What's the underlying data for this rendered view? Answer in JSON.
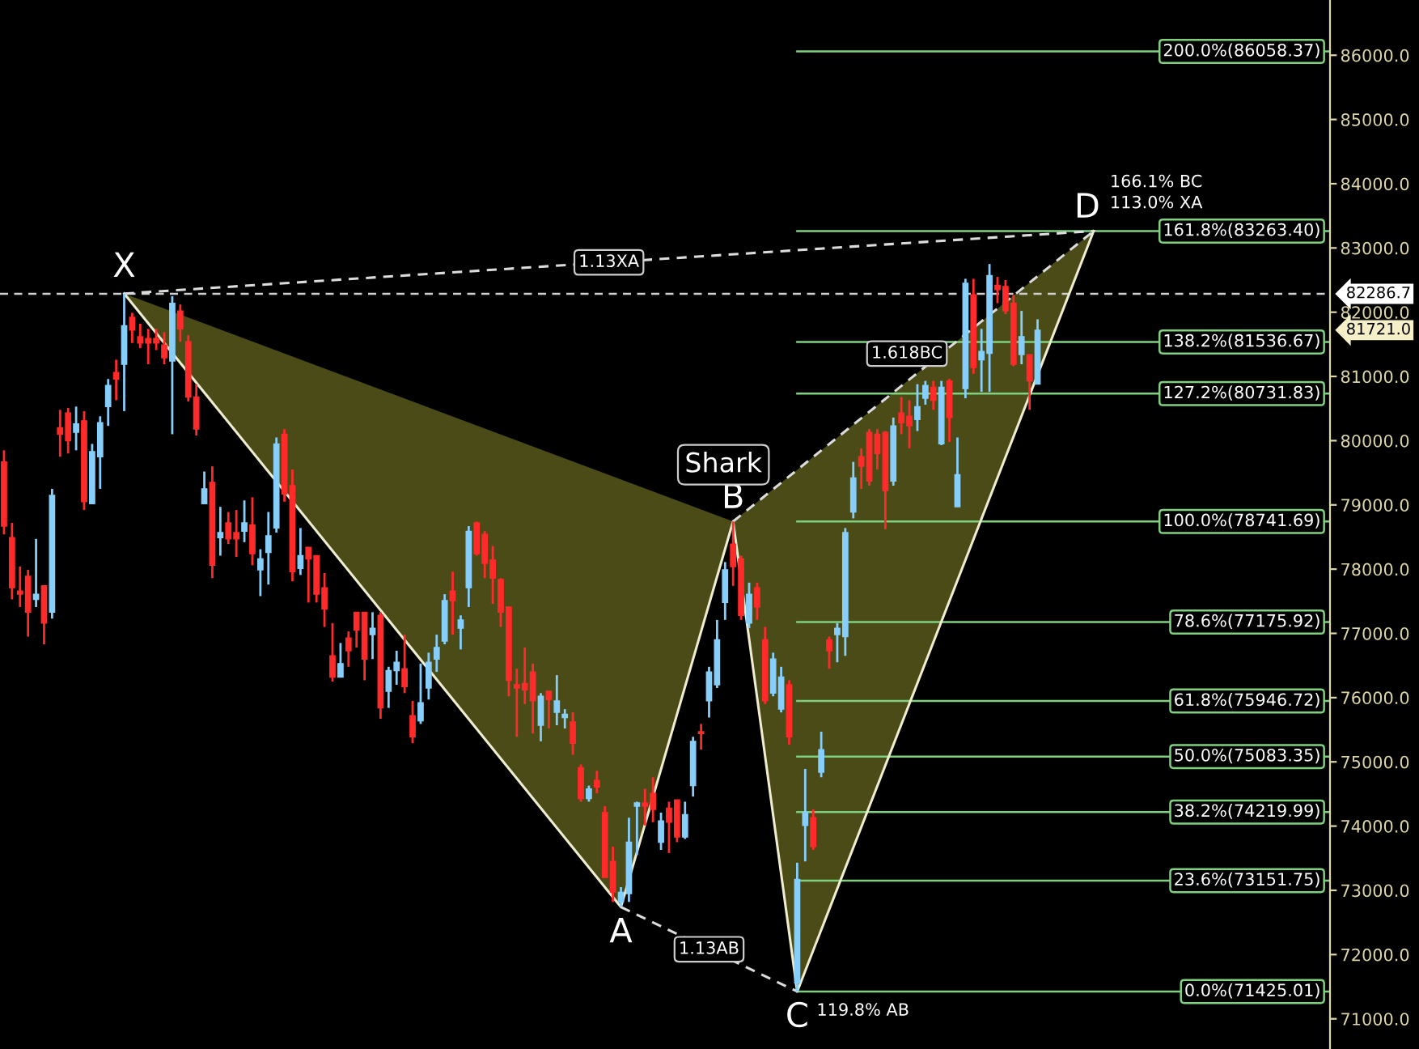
{
  "chart_data": {
    "type": "candlestick",
    "categories": [
      null,
      null,
      null,
      null,
      null,
      null,
      null,
      null,
      null,
      null,
      null,
      null,
      null,
      null,
      null,
      null,
      null,
      null,
      null,
      null,
      null,
      null,
      null,
      null,
      null,
      null,
      null,
      null,
      null,
      null,
      null,
      null,
      null,
      null,
      null,
      null,
      null,
      null,
      null,
      null,
      null,
      null,
      null,
      null,
      null,
      null,
      null,
      null,
      null,
      null,
      null,
      null,
      null,
      null,
      null,
      null,
      null,
      null,
      null,
      null,
      null,
      null,
      null,
      null,
      null,
      null,
      null,
      null,
      null,
      null,
      null,
      null,
      null,
      null,
      null,
      null,
      null,
      null,
      null,
      null,
      null,
      null,
      null,
      null,
      null,
      null,
      null,
      null,
      null,
      null,
      null,
      null,
      null,
      null,
      null,
      null,
      null,
      null,
      null,
      null,
      null,
      null,
      null,
      null,
      null,
      null,
      null,
      null,
      null,
      null,
      null,
      null,
      null,
      null,
      null,
      null,
      null,
      null,
      null,
      null,
      null,
      null,
      null,
      null,
      null,
      null,
      null,
      null,
      null,
      null,
      null,
      null,
      null,
      null,
      null,
      null,
      null,
      null,
      null,
      null,
      null,
      null,
      null,
      null,
      null,
      null,
      null,
      null,
      null,
      null,
      null,
      null,
      null,
      null,
      null,
      null,
      null,
      null,
      null,
      null,
      null,
      null,
      null,
      null,
      null,
      null
    ],
    "ohlc": [
      [
        79670,
        79850,
        78540,
        78670
      ],
      [
        78490,
        78720,
        77530,
        77710
      ],
      [
        77660,
        78040,
        77410,
        77610
      ],
      [
        77890,
        77990,
        76950,
        77330
      ],
      [
        77530,
        78470,
        77410,
        77610
      ],
      [
        77740,
        77740,
        76830,
        77160
      ],
      [
        77330,
        79250,
        77230,
        79150
      ],
      [
        80200,
        80480,
        79750,
        80100
      ],
      [
        80430,
        80510,
        79800,
        80000
      ],
      [
        80130,
        80530,
        79850,
        80260
      ],
      [
        80310,
        80460,
        78920,
        79050
      ],
      [
        79020,
        79950,
        79020,
        79830
      ],
      [
        79750,
        80380,
        79250,
        80280
      ],
      [
        80530,
        80960,
        80230,
        80860
      ],
      [
        81060,
        81260,
        80630,
        80960
      ],
      [
        81190,
        82290,
        80460,
        81790
      ],
      [
        81920,
        81990,
        81520,
        81720
      ],
      [
        81620,
        81820,
        81440,
        81520
      ],
      [
        81590,
        81740,
        81190,
        81520
      ],
      [
        81590,
        81740,
        81410,
        81520
      ],
      [
        81490,
        81690,
        81190,
        81290
      ],
      [
        81240,
        82250,
        80100,
        82140
      ],
      [
        82020,
        82120,
        81540,
        81740
      ],
      [
        81540,
        81640,
        80610,
        80680
      ],
      [
        80680,
        80880,
        80080,
        80180
      ],
      [
        79020,
        79520,
        79020,
        79250
      ],
      [
        79350,
        79600,
        77860,
        78060
      ],
      [
        78490,
        78970,
        78210,
        78570
      ],
      [
        78720,
        78890,
        78390,
        78470
      ],
      [
        78570,
        78920,
        78190,
        78470
      ],
      [
        78590,
        79070,
        78420,
        78720
      ],
      [
        78690,
        79120,
        78060,
        78240
      ],
      [
        77990,
        78310,
        77580,
        78160
      ],
      [
        78260,
        78890,
        77760,
        78520
      ],
      [
        78640,
        80050,
        78570,
        79950
      ],
      [
        80100,
        80180,
        79050,
        79170
      ],
      [
        79300,
        79550,
        77810,
        77960
      ],
      [
        78010,
        78640,
        77910,
        78210
      ],
      [
        78340,
        78340,
        77480,
        78160
      ],
      [
        78210,
        78210,
        77480,
        77610
      ],
      [
        77710,
        77940,
        77100,
        77380
      ],
      [
        76650,
        77160,
        76250,
        76320
      ],
      [
        76320,
        76850,
        76320,
        76530
      ],
      [
        76930,
        77030,
        76480,
        76730
      ],
      [
        77330,
        77330,
        76780,
        77050
      ],
      [
        77330,
        77330,
        76270,
        76600
      ],
      [
        76980,
        77330,
        76600,
        77080
      ],
      [
        77280,
        77330,
        75670,
        75840
      ],
      [
        76100,
        76480,
        75840,
        76420
      ],
      [
        76420,
        76730,
        76200,
        76550
      ],
      [
        76450,
        76980,
        76070,
        76170
      ],
      [
        75720,
        75950,
        75290,
        75390
      ],
      [
        75640,
        76530,
        75590,
        75920
      ],
      [
        76150,
        76700,
        75970,
        76550
      ],
      [
        76600,
        76980,
        76400,
        76780
      ],
      [
        76880,
        77610,
        76830,
        77510
      ],
      [
        77660,
        77960,
        76980,
        77510
      ],
      [
        77080,
        77280,
        76750,
        77210
      ],
      [
        77710,
        78670,
        77410,
        78590
      ],
      [
        78720,
        78740,
        78210,
        78240
      ],
      [
        78540,
        78590,
        77860,
        78090
      ],
      [
        78140,
        78360,
        77460,
        77860
      ],
      [
        77840,
        77860,
        77100,
        77330
      ],
      [
        77410,
        77410,
        76020,
        76270
      ],
      [
        76200,
        76450,
        75390,
        76150
      ],
      [
        76220,
        76780,
        75900,
        76120
      ],
      [
        76400,
        76530,
        75440,
        75950
      ],
      [
        75570,
        76070,
        75320,
        76020
      ],
      [
        76100,
        76100,
        75520,
        75970
      ],
      [
        75770,
        76350,
        75570,
        75950
      ],
      [
        75690,
        75820,
        75520,
        75740
      ],
      [
        75620,
        75770,
        75110,
        75290
      ],
      [
        74910,
        74960,
        74380,
        74430
      ],
      [
        74430,
        74630,
        74380,
        74580
      ],
      [
        74710,
        74860,
        74510,
        74610
      ],
      [
        74210,
        74310,
        73200,
        73200
      ],
      [
        73450,
        73680,
        72820,
        72970
      ],
      [
        72820,
        73050,
        72740,
        72970
      ],
      [
        72950,
        74130,
        72820,
        73750
      ],
      [
        74310,
        74380,
        73550,
        74360
      ],
      [
        74360,
        74580,
        74010,
        74310
      ],
      [
        74510,
        74760,
        74060,
        74260
      ],
      [
        73750,
        74210,
        73630,
        74080
      ],
      [
        74280,
        74380,
        73580,
        74060
      ],
      [
        74410,
        74410,
        73750,
        73830
      ],
      [
        73830,
        74380,
        73800,
        74180
      ],
      [
        74630,
        75390,
        74460,
        75320
      ],
      [
        75470,
        75590,
        75190,
        75440
      ],
      [
        75950,
        76480,
        75690,
        76400
      ],
      [
        76200,
        77210,
        76150,
        76900
      ],
      [
        77480,
        78110,
        77210,
        77990
      ],
      [
        78390,
        78741.69,
        77740,
        78040
      ],
      [
        78160,
        78210,
        77210,
        77280
      ],
      [
        77160,
        77790,
        77080,
        77610
      ],
      [
        77710,
        77790,
        77210,
        77410
      ],
      [
        76900,
        77100,
        75900,
        75950
      ],
      [
        76070,
        76700,
        76020,
        76600
      ],
      [
        75820,
        76480,
        75770,
        76320
      ],
      [
        76200,
        76270,
        75270,
        75390
      ],
      [
        71560,
        73430,
        71425.01,
        73170
      ],
      [
        74010,
        74890,
        73450,
        74210
      ],
      [
        74130,
        74260,
        73630,
        73680
      ],
      [
        74840,
        75470,
        74760,
        75190
      ],
      [
        76900,
        76950,
        76450,
        76730
      ],
      [
        76980,
        77160,
        76550,
        77080
      ],
      [
        76950,
        78640,
        76650,
        78570
      ],
      [
        78890,
        79670,
        78790,
        79420
      ],
      [
        79750,
        79880,
        79250,
        79600
      ],
      [
        80130,
        80180,
        79300,
        79370
      ],
      [
        80100,
        80180,
        79550,
        79800
      ],
      [
        80130,
        80150,
        78620,
        79220
      ],
      [
        79370,
        80360,
        79300,
        80230
      ],
      [
        80430,
        80680,
        80100,
        80280
      ],
      [
        80380,
        80630,
        79880,
        80230
      ],
      [
        80330,
        80880,
        80150,
        80530
      ],
      [
        80660,
        80930,
        80560,
        80860
      ],
      [
        80830,
        80930,
        80480,
        80630
      ],
      [
        79950,
        80930,
        79930,
        80830
      ],
      [
        80930,
        80960,
        79980,
        80360
      ],
      [
        78970,
        80050,
        78970,
        79470
      ],
      [
        80810,
        82520,
        80660,
        82450
      ],
      [
        82270,
        82520,
        81040,
        81140
      ],
      [
        81260,
        81740,
        80760,
        81390
      ],
      [
        81360,
        82750,
        80760,
        82570
      ],
      [
        82420,
        82550,
        82140,
        82350
      ],
      [
        82400,
        82500,
        81970,
        82020
      ],
      [
        82140,
        82270,
        81160,
        81190
      ],
      [
        81340,
        82020,
        81190,
        81620
      ],
      [
        81340,
        81340,
        80480,
        80930
      ],
      [
        80880,
        81890,
        80880,
        81721.0
      ],
      null,
      null,
      null,
      null,
      null,
      null,
      null,
      null,
      null,
      null,
      null,
      null,
      null,
      null,
      null,
      null,
      null,
      null,
      null,
      null,
      null,
      null,
      null,
      null,
      null,
      null,
      null,
      null,
      null,
      null,
      null,
      null,
      null,
      null,
      null,
      null
    ],
    "series": [
      {
        "type": "line",
        "color": "#efeccf",
        "line_style": "solid",
        "values": [
          null,
          null,
          null,
          null,
          null,
          null,
          null,
          null,
          null,
          null,
          null,
          null,
          null,
          null,
          null,
          82290,
          null,
          null,
          null,
          null,
          null,
          null,
          null,
          null,
          null,
          null,
          null,
          null,
          null,
          null,
          null,
          null,
          null,
          null,
          null,
          null,
          null,
          null,
          null,
          null,
          null,
          null,
          null,
          null,
          null,
          null,
          null,
          null,
          null,
          null,
          null,
          null,
          null,
          null,
          null,
          null,
          null,
          null,
          null,
          null,
          null,
          null,
          null,
          null,
          null,
          null,
          null,
          null,
          null,
          null,
          null,
          null,
          null,
          null,
          null,
          null,
          null,
          72740,
          null,
          null,
          null,
          null,
          null,
          null,
          null,
          null,
          null,
          null,
          null,
          null,
          null,
          78741.69,
          null,
          null,
          null,
          null,
          null,
          null,
          null,
          71425.01,
          null,
          null,
          null,
          null,
          null,
          null,
          null,
          null,
          null,
          null,
          null,
          null,
          null,
          null,
          null,
          null,
          null,
          null,
          null,
          null,
          null,
          null,
          null,
          null,
          null,
          null,
          null,
          null,
          null,
          null,
          null,
          null,
          null,
          null,
          null,
          null,
          83263.4,
          null,
          null,
          null,
          null,
          null,
          null,
          null,
          null,
          null,
          null,
          null,
          null,
          null,
          null,
          null,
          null,
          null,
          null,
          null,
          null,
          null,
          null,
          null,
          null,
          null,
          null,
          null,
          null,
          null
        ]
      },
      {
        "type": "line",
        "color": "#dcdcdc",
        "line_style": "dashed",
        "values": [
          null,
          null,
          null,
          null,
          null,
          null,
          null,
          null,
          null,
          null,
          null,
          null,
          null,
          null,
          null,
          82290,
          null,
          null,
          null,
          null,
          null,
          null,
          null,
          null,
          null,
          null,
          null,
          null,
          null,
          null,
          null,
          null,
          null,
          null,
          null,
          null,
          null,
          null,
          null,
          null,
          null,
          null,
          null,
          null,
          null,
          null,
          null,
          null,
          null,
          null,
          null,
          null,
          null,
          null,
          null,
          null,
          null,
          null,
          null,
          null,
          null,
          null,
          null,
          null,
          null,
          null,
          null,
          null,
          null,
          null,
          null,
          null,
          null,
          null,
          null,
          null,
          null,
          null,
          null,
          null,
          null,
          null,
          null,
          null,
          null,
          null,
          null,
          null,
          null,
          null,
          null,
          null,
          null,
          null,
          null,
          null,
          null,
          null,
          null,
          null,
          null,
          null,
          null,
          null,
          null,
          null,
          null,
          null,
          null,
          null,
          null,
          null,
          null,
          null,
          null,
          null,
          null,
          null,
          null,
          null,
          null,
          null,
          null,
          null,
          null,
          null,
          null,
          null,
          null,
          null,
          null,
          null,
          null,
          null,
          null,
          null,
          83263.4,
          null,
          null,
          null,
          null,
          null,
          null,
          null,
          null,
          null,
          null,
          null,
          null,
          null,
          null,
          null,
          null,
          null,
          null,
          null,
          null,
          null,
          null,
          null,
          null,
          null,
          null,
          null,
          null,
          null
        ]
      },
      {
        "type": "line",
        "color": "#dcdcdc",
        "line_style": "dashed",
        "values": [
          null,
          null,
          null,
          null,
          null,
          null,
          null,
          null,
          null,
          null,
          null,
          null,
          null,
          null,
          null,
          null,
          null,
          null,
          null,
          null,
          null,
          null,
          null,
          null,
          null,
          null,
          null,
          null,
          null,
          null,
          null,
          null,
          null,
          null,
          null,
          null,
          null,
          null,
          null,
          null,
          null,
          null,
          null,
          null,
          null,
          null,
          null,
          null,
          null,
          null,
          null,
          null,
          null,
          null,
          null,
          null,
          null,
          null,
          null,
          null,
          null,
          null,
          null,
          null,
          null,
          null,
          null,
          null,
          null,
          null,
          null,
          null,
          null,
          null,
          null,
          null,
          null,
          72740,
          null,
          null,
          null,
          null,
          null,
          null,
          null,
          null,
          null,
          null,
          null,
          null,
          null,
          null,
          null,
          null,
          null,
          null,
          null,
          null,
          null,
          71425.01,
          null,
          null,
          null,
          null,
          null,
          null,
          null,
          null,
          null,
          null,
          null,
          null,
          null,
          null,
          null,
          null,
          null,
          null,
          null,
          null,
          null,
          null,
          null,
          null,
          null,
          null,
          null,
          null,
          null,
          null,
          null,
          null,
          null,
          null,
          null,
          null,
          null,
          null,
          null,
          null,
          null,
          null,
          null,
          null,
          null,
          null,
          null,
          null,
          null,
          null,
          null,
          null,
          null,
          null,
          null,
          null,
          null,
          null,
          null,
          null,
          null,
          null,
          null,
          null,
          null,
          null
        ]
      },
      {
        "type": "line",
        "color": "#dcdcdc",
        "line_style": "dashed",
        "values": [
          null,
          null,
          null,
          null,
          null,
          null,
          null,
          null,
          null,
          null,
          null,
          null,
          null,
          null,
          null,
          null,
          null,
          null,
          null,
          null,
          null,
          null,
          null,
          null,
          null,
          null,
          null,
          null,
          null,
          null,
          null,
          null,
          null,
          null,
          null,
          null,
          null,
          null,
          null,
          null,
          null,
          null,
          null,
          null,
          null,
          null,
          null,
          null,
          null,
          null,
          null,
          null,
          null,
          null,
          null,
          null,
          null,
          null,
          null,
          null,
          null,
          null,
          null,
          null,
          null,
          null,
          null,
          null,
          null,
          null,
          null,
          null,
          null,
          null,
          null,
          null,
          null,
          null,
          null,
          null,
          null,
          null,
          null,
          null,
          null,
          null,
          null,
          null,
          null,
          null,
          null,
          78741.69,
          null,
          null,
          null,
          null,
          null,
          null,
          null,
          null,
          null,
          null,
          null,
          null,
          null,
          null,
          null,
          null,
          null,
          null,
          null,
          null,
          null,
          null,
          null,
          null,
          null,
          null,
          null,
          null,
          null,
          null,
          null,
          null,
          null,
          null,
          null,
          null,
          null,
          null,
          null,
          null,
          null,
          null,
          null,
          null,
          83263.4,
          null,
          null,
          null,
          null,
          null,
          null,
          null,
          null,
          null,
          null,
          null,
          null,
          null,
          null,
          null,
          null,
          null,
          null,
          null,
          null,
          null,
          null,
          null,
          null,
          null,
          null,
          null,
          null,
          null
        ]
      }
    ],
    "ylim": [
      70530,
      86860
    ],
    "yticks": [
      {
        "value": 71000,
        "label": "71000.0"
      },
      {
        "value": 72000,
        "label": "72000.0"
      },
      {
        "value": 73000,
        "label": "73000.0"
      },
      {
        "value": 74000,
        "label": "74000.0"
      },
      {
        "value": 75000,
        "label": "75000.0"
      },
      {
        "value": 76000,
        "label": "76000.0"
      },
      {
        "value": 77000,
        "label": "77000.0"
      },
      {
        "value": 78000,
        "label": "78000.0"
      },
      {
        "value": 79000,
        "label": "79000.0"
      },
      {
        "value": 80000,
        "label": "80000.0"
      },
      {
        "value": 81000,
        "label": "81000.0"
      },
      {
        "value": 82000,
        "label": "82000.0"
      },
      {
        "value": 83000,
        "label": "83000.0"
      },
      {
        "value": 84000,
        "label": "84000.0"
      },
      {
        "value": 85000,
        "label": "85000.0"
      },
      {
        "value": 86000,
        "label": "86000.0"
      }
    ],
    "tick_labels": "y",
    "ref_lines": [
      {
        "axis": "y",
        "value": 86058.37,
        "label": "200.0%(86058.37)",
        "color": "#7fd07f"
      },
      {
        "axis": "y",
        "value": 83263.4,
        "label": "161.8%(83263.40)",
        "color": "#7fd07f"
      },
      {
        "axis": "y",
        "value": 81536.67,
        "label": "138.2%(81536.67)",
        "color": "#7fd07f"
      },
      {
        "axis": "y",
        "value": 80731.83,
        "label": "127.2%(80731.83)",
        "color": "#7fd07f"
      },
      {
        "axis": "y",
        "value": 78741.69,
        "label": "100.0%(78741.69)",
        "color": "#7fd07f"
      },
      {
        "axis": "y",
        "value": 77175.92,
        "label": "78.6%(77175.92)",
        "color": "#7fd07f"
      },
      {
        "axis": "y",
        "value": 75946.72,
        "label": "61.8%(75946.72)",
        "color": "#7fd07f"
      },
      {
        "axis": "y",
        "value": 75083.35,
        "label": "50.0%(75083.35)",
        "color": "#7fd07f"
      },
      {
        "axis": "y",
        "value": 74219.99,
        "label": "38.2%(74219.99)",
        "color": "#7fd07f"
      },
      {
        "axis": "y",
        "value": 73151.75,
        "label": "23.6%(73151.75)",
        "color": "#7fd07f"
      },
      {
        "axis": "y",
        "value": 71425.01,
        "label": "0.0%(71425.01)",
        "color": "#7fd07f"
      },
      {
        "axis": "y",
        "value": 82286.7,
        "label": "82286.7",
        "color": "#cfcfcf",
        "line_style": "dashed"
      }
    ],
    "annotations": [
      "X",
      "A",
      "B",
      "C",
      "D",
      "Shark",
      "1.13XA",
      "1.13AB",
      "1.618BC",
      "166.1% BC",
      "113.0% XA",
      "119.8% AB",
      "81721.0"
    ]
  }
}
